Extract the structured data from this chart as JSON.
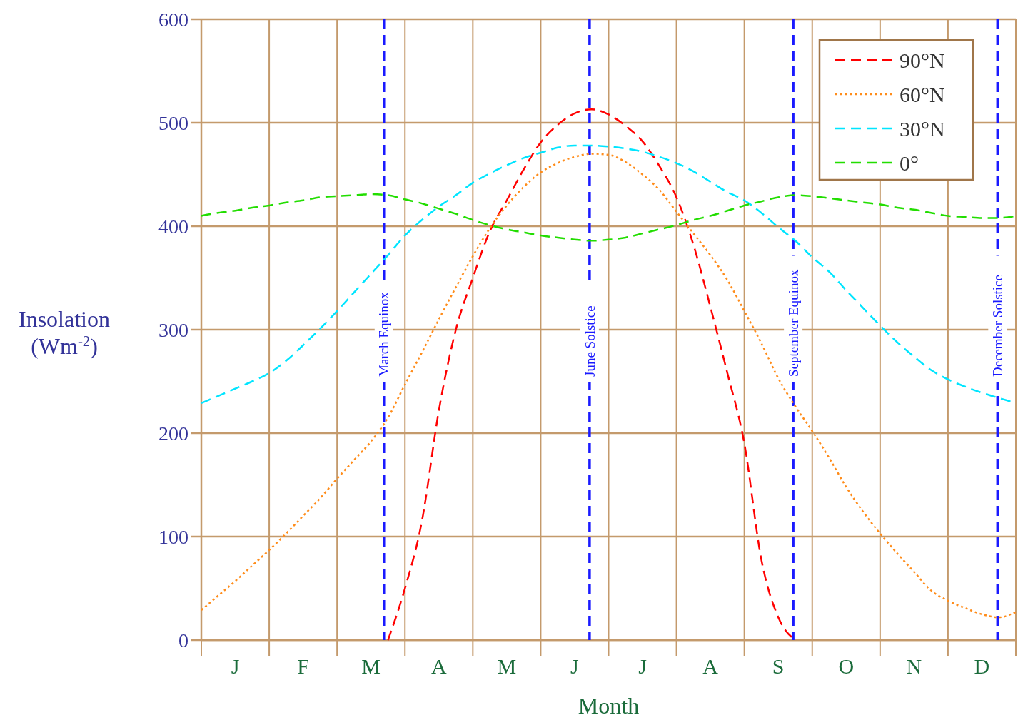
{
  "chart_data": {
    "type": "line",
    "xlabel": "Month",
    "ylabel": "Insolation (Wm$^{-2}$)",
    "categories": [
      null,
      null,
      "J",
      null,
      null,
      null,
      "F",
      null,
      null,
      null,
      "M",
      null,
      null,
      null,
      "A",
      null,
      null,
      null,
      "M",
      null,
      null,
      null,
      "J",
      null,
      null,
      null,
      "J",
      null,
      null,
      null,
      "A",
      null,
      null,
      null,
      "S",
      null,
      null,
      null,
      "O",
      null,
      null,
      null,
      "N",
      null,
      null,
      null,
      "D",
      null,
      null
    ],
    "ylim": [
      0,
      600
    ],
    "yticks": [
      0,
      100,
      200,
      300,
      400,
      500,
      600
    ],
    "grid": true,
    "legend": "top right",
    "series": [
      {
        "name": "90°N",
        "color": "#ff0000",
        "line_style": "dashed",
        "values": [
          null,
          null,
          null,
          null,
          null,
          null,
          null,
          null,
          null,
          null,
          null,
          0,
          50,
          115,
          222,
          300,
          350,
          395,
          425,
          455,
          481,
          498,
          509,
          513,
          508,
          497,
          482,
          458,
          428,
          382,
          322,
          258,
          190,
          78,
          22,
          0,
          null,
          null,
          null,
          null,
          null,
          null,
          null,
          null,
          null,
          null,
          null,
          null,
          null
        ]
      },
      {
        "name": "60°N",
        "color": "#ff8c1a",
        "line_style": "dotted",
        "values": [
          29,
          43,
          57,
          72,
          87,
          103,
          120,
          137,
          156,
          174,
          192,
          215,
          247,
          278,
          310,
          341,
          371,
          398,
          420,
          438,
          452,
          461,
          467,
          470,
          469,
          462,
          450,
          435,
          414,
          393,
          372,
          348,
          318,
          287,
          253,
          226,
          202,
          176,
          148,
          124,
          103,
          84,
          66,
          48,
          38,
          31,
          25,
          22,
          27
        ]
      },
      {
        "name": "30°N",
        "color": "#00e5ff",
        "line_style": "dashed",
        "values": [
          229,
          236,
          243,
          250,
          258,
          270,
          285,
          301,
          318,
          336,
          354,
          372,
          391,
          406,
          419,
          430,
          442,
          451,
          459,
          466,
          471,
          476,
          478,
          478,
          477,
          475,
          472,
          467,
          461,
          453,
          443,
          433,
          425,
          413,
          399,
          386,
          370,
          356,
          338,
          321,
          304,
          288,
          274,
          261,
          252,
          245,
          239,
          234,
          229
        ]
      },
      {
        "name": "0°",
        "color": "#22dd00",
        "line_style": "dashed",
        "values": [
          410,
          413,
          415,
          418,
          420,
          423,
          425,
          428,
          429,
          430,
          431,
          430,
          426,
          422,
          417,
          412,
          406,
          401,
          397,
          394,
          391,
          389,
          387,
          386,
          387,
          389,
          393,
          397,
          401,
          406,
          410,
          415,
          420,
          424,
          428,
          430,
          429,
          427,
          425,
          423,
          421,
          418,
          416,
          413,
          410,
          409,
          408,
          408,
          410
        ]
      }
    ],
    "annotations": [
      "March Equinox",
      "June Solstice",
      "September Equinox",
      "December Solstice"
    ]
  }
}
